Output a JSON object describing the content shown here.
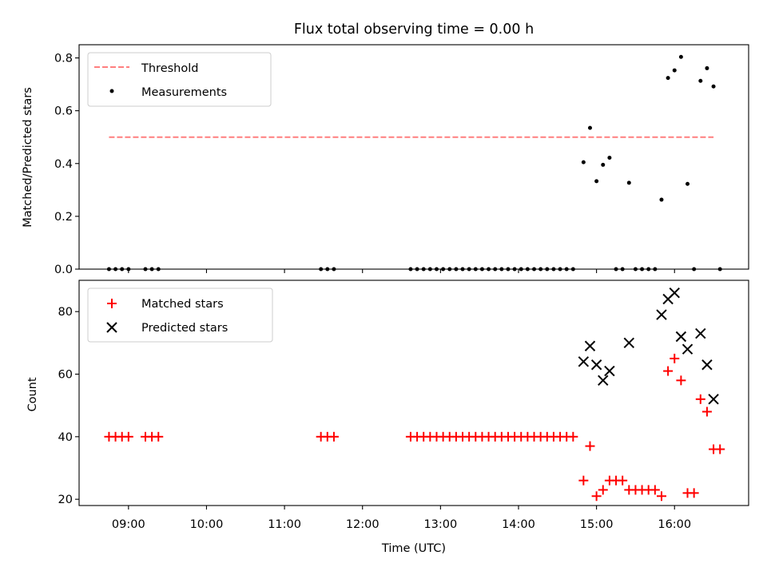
{
  "chart_data": [
    {
      "type": "scatter",
      "title": "Flux total observing time = 0.00 h",
      "xlabel": "",
      "ylabel": "Matched/Predicted stars",
      "xlim": [
        "08:22",
        "16:57"
      ],
      "ylim": [
        0,
        0.85
      ],
      "yticks": [
        0.0,
        0.2,
        0.4,
        0.6,
        0.8
      ],
      "ytick_labels": [
        "0.0",
        "0.2",
        "0.4",
        "0.6",
        "0.8"
      ],
      "grid": false,
      "legend": {
        "placement": "top-left",
        "entries": [
          "Threshold",
          "Measurements"
        ]
      },
      "threshold": {
        "name": "Threshold",
        "y": 0.5,
        "x_range": [
          "08:45",
          "16:30"
        ],
        "color": "#ff7f7f",
        "style": "dashed"
      },
      "series": [
        {
          "name": "Measurements",
          "color": "#000000",
          "marker": "dot",
          "points": [
            [
              "08:45",
              0
            ],
            [
              "08:50",
              0
            ],
            [
              "08:55",
              0
            ],
            [
              "09:00",
              0
            ],
            [
              "09:13",
              0
            ],
            [
              "09:18",
              0
            ],
            [
              "09:23",
              0
            ],
            [
              "11:28",
              0
            ],
            [
              "11:33",
              0
            ],
            [
              "11:38",
              0
            ],
            [
              "12:37",
              0
            ],
            [
              "12:42",
              0
            ],
            [
              "12:47",
              0
            ],
            [
              "12:52",
              0
            ],
            [
              "12:57",
              0
            ],
            [
              "13:02",
              0
            ],
            [
              "13:07",
              0
            ],
            [
              "13:12",
              0
            ],
            [
              "13:17",
              0
            ],
            [
              "13:22",
              0
            ],
            [
              "13:27",
              0
            ],
            [
              "13:32",
              0
            ],
            [
              "13:37",
              0
            ],
            [
              "13:42",
              0
            ],
            [
              "13:47",
              0
            ],
            [
              "13:52",
              0
            ],
            [
              "13:57",
              0
            ],
            [
              "14:02",
              0
            ],
            [
              "14:07",
              0
            ],
            [
              "14:12",
              0
            ],
            [
              "14:17",
              0
            ],
            [
              "14:22",
              0
            ],
            [
              "14:27",
              0
            ],
            [
              "14:32",
              0
            ],
            [
              "14:37",
              0
            ],
            [
              "14:42",
              0
            ],
            [
              "14:50",
              0.405
            ],
            [
              "14:55",
              0.535
            ],
            [
              "15:00",
              0.333
            ],
            [
              "15:05",
              0.395
            ],
            [
              "15:10",
              0.422
            ],
            [
              "15:15",
              0
            ],
            [
              "15:20",
              0
            ],
            [
              "15:25",
              0.327
            ],
            [
              "15:30",
              0
            ],
            [
              "15:35",
              0
            ],
            [
              "15:40",
              0
            ],
            [
              "15:45",
              0
            ],
            [
              "15:50",
              0.263
            ],
            [
              "15:55",
              0.724
            ],
            [
              "16:00",
              0.753
            ],
            [
              "16:05",
              0.804
            ],
            [
              "16:10",
              0.323
            ],
            [
              "16:15",
              0
            ],
            [
              "16:20",
              0.713
            ],
            [
              "16:25",
              0.761
            ],
            [
              "16:30",
              0.692
            ],
            [
              "16:35",
              0
            ]
          ]
        }
      ]
    },
    {
      "type": "scatter",
      "title": "",
      "xlabel": "Time (UTC)",
      "ylabel": "Count",
      "xlim": [
        "08:22",
        "16:57"
      ],
      "ylim": [
        18,
        90
      ],
      "yticks": [
        20,
        40,
        60,
        80
      ],
      "ytick_labels": [
        "20",
        "40",
        "60",
        "80"
      ],
      "xticks": [
        "09:00",
        "10:00",
        "11:00",
        "12:00",
        "13:00",
        "14:00",
        "15:00",
        "16:00"
      ],
      "grid": false,
      "legend": {
        "placement": "top-left",
        "entries": [
          "Matched stars",
          "Predicted stars"
        ]
      },
      "series": [
        {
          "name": "Matched stars",
          "color": "#ff0000",
          "marker": "plus",
          "points": [
            [
              "08:45",
              40
            ],
            [
              "08:50",
              40
            ],
            [
              "08:55",
              40
            ],
            [
              "09:00",
              40
            ],
            [
              "09:13",
              40
            ],
            [
              "09:18",
              40
            ],
            [
              "09:23",
              40
            ],
            [
              "11:28",
              40
            ],
            [
              "11:33",
              40
            ],
            [
              "11:38",
              40
            ],
            [
              "12:37",
              40
            ],
            [
              "12:42",
              40
            ],
            [
              "12:47",
              40
            ],
            [
              "12:52",
              40
            ],
            [
              "12:57",
              40
            ],
            [
              "13:02",
              40
            ],
            [
              "13:07",
              40
            ],
            [
              "13:12",
              40
            ],
            [
              "13:17",
              40
            ],
            [
              "13:22",
              40
            ],
            [
              "13:27",
              40
            ],
            [
              "13:32",
              40
            ],
            [
              "13:37",
              40
            ],
            [
              "13:42",
              40
            ],
            [
              "13:47",
              40
            ],
            [
              "13:52",
              40
            ],
            [
              "13:57",
              40
            ],
            [
              "14:02",
              40
            ],
            [
              "14:07",
              40
            ],
            [
              "14:12",
              40
            ],
            [
              "14:17",
              40
            ],
            [
              "14:22",
              40
            ],
            [
              "14:27",
              40
            ],
            [
              "14:32",
              40
            ],
            [
              "14:37",
              40
            ],
            [
              "14:42",
              40
            ],
            [
              "14:50",
              26
            ],
            [
              "14:55",
              37
            ],
            [
              "15:00",
              21
            ],
            [
              "15:05",
              23
            ],
            [
              "15:10",
              26
            ],
            [
              "15:15",
              26
            ],
            [
              "15:20",
              26
            ],
            [
              "15:25",
              23
            ],
            [
              "15:30",
              23
            ],
            [
              "15:35",
              23
            ],
            [
              "15:40",
              23
            ],
            [
              "15:45",
              23
            ],
            [
              "15:50",
              21
            ],
            [
              "15:55",
              61
            ],
            [
              "16:00",
              65
            ],
            [
              "16:05",
              58
            ],
            [
              "16:10",
              22
            ],
            [
              "16:15",
              22
            ],
            [
              "16:20",
              52
            ],
            [
              "16:25",
              48
            ],
            [
              "16:30",
              36
            ],
            [
              "16:35",
              36
            ]
          ]
        },
        {
          "name": "Predicted stars",
          "color": "#000000",
          "marker": "x",
          "points": [
            [
              "14:50",
              64
            ],
            [
              "14:55",
              69
            ],
            [
              "15:00",
              63
            ],
            [
              "15:05",
              58
            ],
            [
              "15:10",
              61
            ],
            [
              "15:25",
              70
            ],
            [
              "15:50",
              79
            ],
            [
              "15:55",
              84
            ],
            [
              "16:00",
              86
            ],
            [
              "16:05",
              72
            ],
            [
              "16:10",
              68
            ],
            [
              "16:20",
              73
            ],
            [
              "16:25",
              63
            ],
            [
              "16:30",
              52
            ]
          ]
        }
      ]
    }
  ]
}
